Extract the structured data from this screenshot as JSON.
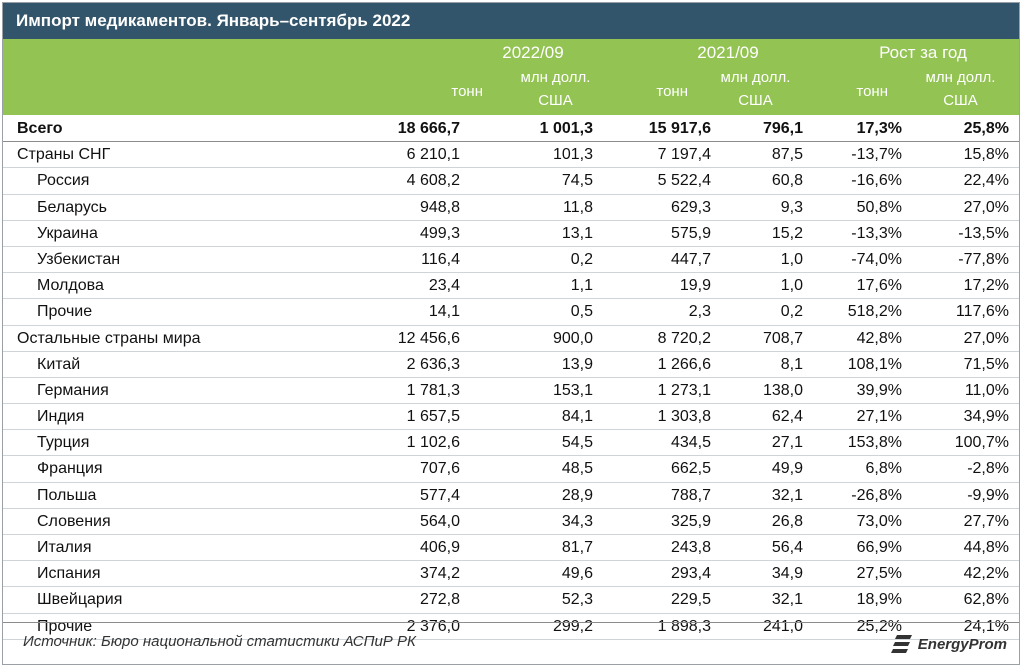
{
  "title": "Импорт медикаментов. Январь–сентябрь 2022",
  "header": {
    "groups": [
      "2022/09",
      "2021/09",
      "Рост за год"
    ],
    "sub_tons": "тонн",
    "sub_usd_line1": "млн долл.",
    "sub_usd_line2": "США"
  },
  "rows": [
    {
      "label": "Всего",
      "v": [
        "18 666,7",
        "1 001,3",
        "15 917,6",
        "796,1",
        "17,3%",
        "25,8%"
      ]
    },
    {
      "label": "Страны СНГ",
      "v": [
        "6 210,1",
        "101,3",
        "7 197,4",
        "87,5",
        "-13,7%",
        "15,8%"
      ]
    },
    {
      "label": "Россия",
      "v": [
        "4 608,2",
        "74,5",
        "5 522,4",
        "60,8",
        "-16,6%",
        "22,4%"
      ]
    },
    {
      "label": "Беларусь",
      "v": [
        "948,8",
        "11,8",
        "629,3",
        "9,3",
        "50,8%",
        "27,0%"
      ]
    },
    {
      "label": "Украина",
      "v": [
        "499,3",
        "13,1",
        "575,9",
        "15,2",
        "-13,3%",
        "-13,5%"
      ]
    },
    {
      "label": "Узбекистан",
      "v": [
        "116,4",
        "0,2",
        "447,7",
        "1,0",
        "-74,0%",
        "-77,8%"
      ]
    },
    {
      "label": "Молдова",
      "v": [
        "23,4",
        "1,1",
        "19,9",
        "1,0",
        "17,6%",
        "17,2%"
      ]
    },
    {
      "label": "Прочие",
      "v": [
        "14,1",
        "0,5",
        "2,3",
        "0,2",
        "518,2%",
        "117,6%"
      ]
    },
    {
      "label": "Остальные страны мира",
      "v": [
        "12 456,6",
        "900,0",
        "8 720,2",
        "708,7",
        "42,8%",
        "27,0%"
      ]
    },
    {
      "label": "Китай",
      "v": [
        "2 636,3",
        "13,9",
        "1 266,6",
        "8,1",
        "108,1%",
        "71,5%"
      ]
    },
    {
      "label": "Германия",
      "v": [
        "1 781,3",
        "153,1",
        "1 273,1",
        "138,0",
        "39,9%",
        "11,0%"
      ]
    },
    {
      "label": "Индия",
      "v": [
        "1 657,5",
        "84,1",
        "1 303,8",
        "62,4",
        "27,1%",
        "34,9%"
      ]
    },
    {
      "label": "Турция",
      "v": [
        "1 102,6",
        "54,5",
        "434,5",
        "27,1",
        "153,8%",
        "100,7%"
      ]
    },
    {
      "label": "Франция",
      "v": [
        "707,6",
        "48,5",
        "662,5",
        "49,9",
        "6,8%",
        "-2,8%"
      ]
    },
    {
      "label": "Польша",
      "v": [
        "577,4",
        "28,9",
        "788,7",
        "32,1",
        "-26,8%",
        "-9,9%"
      ]
    },
    {
      "label": "Словения",
      "v": [
        "564,0",
        "34,3",
        "325,9",
        "26,8",
        "73,0%",
        "27,7%"
      ]
    },
    {
      "label": "Италия",
      "v": [
        "406,9",
        "81,7",
        "243,8",
        "56,4",
        "66,9%",
        "44,8%"
      ]
    },
    {
      "label": "Испания",
      "v": [
        "374,2",
        "49,6",
        "293,4",
        "34,9",
        "27,5%",
        "42,2%"
      ]
    },
    {
      "label": "Швейцария",
      "v": [
        "272,8",
        "52,3",
        "229,5",
        "32,1",
        "18,9%",
        "62,8%"
      ]
    },
    {
      "label": "Прочие",
      "v": [
        "2 376,0",
        "299,2",
        "1 898,3",
        "241,0",
        "25,2%",
        "24,1%"
      ]
    }
  ],
  "source": "Источник: Бюро национальной статистики АСПиР РК",
  "logo_text": "EnergyProm",
  "colors": {
    "title_bg": "#33556b",
    "header_bg": "#92c353"
  }
}
